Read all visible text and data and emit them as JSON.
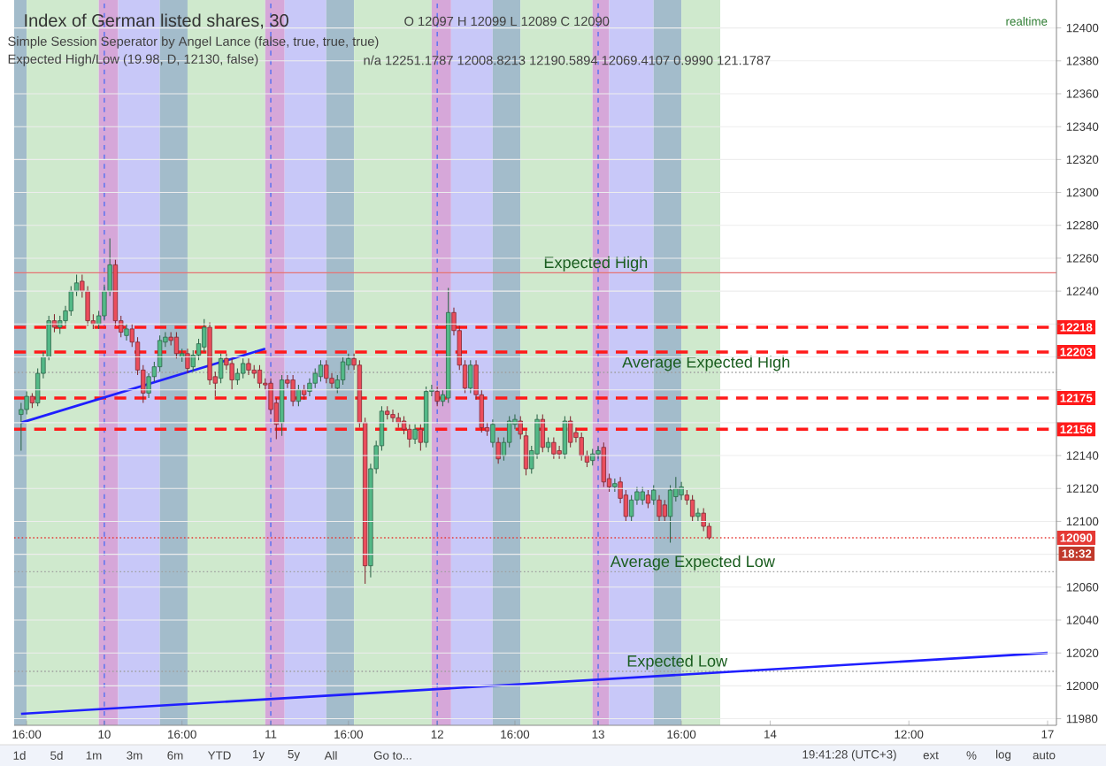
{
  "chart_data": {
    "type": "candlestick",
    "title": "Index of German listed shares, 30",
    "categories": [
      null,
      "16:00",
      null,
      null,
      null,
      null,
      null,
      null,
      null,
      null,
      null,
      null,
      null,
      null,
      null,
      "10",
      null,
      null,
      null,
      null,
      null,
      null,
      null,
      null,
      null,
      null,
      null,
      null,
      null,
      "16:00",
      null,
      null,
      null,
      null,
      null,
      null,
      null,
      null,
      null,
      null,
      null,
      null,
      null,
      null,
      null,
      "11",
      null,
      null,
      null,
      null,
      null,
      null,
      null,
      null,
      null,
      null,
      null,
      null,
      null,
      "16:00",
      null,
      null,
      null,
      null,
      null,
      null,
      null,
      null,
      null,
      null,
      null,
      null,
      null,
      null,
      null,
      "12",
      null,
      null,
      null,
      null,
      null,
      null,
      null,
      null,
      null,
      null,
      null,
      null,
      null,
      "16:00",
      null,
      null,
      null,
      null,
      null,
      null,
      null,
      null,
      null,
      null,
      null,
      null,
      null,
      null,
      "13",
      null,
      null,
      null,
      null,
      null,
      null,
      null,
      null,
      null,
      null,
      null,
      null,
      null,
      null,
      "16:00",
      null,
      null,
      null,
      null,
      null,
      null,
      null,
      null,
      null,
      null,
      null,
      null,
      null,
      null,
      null,
      "14",
      null,
      null,
      null,
      null,
      null,
      null,
      null,
      null,
      null,
      null,
      null,
      null,
      null,
      null,
      null,
      null,
      null,
      null,
      null,
      null,
      null,
      null,
      null,
      null,
      "12:00",
      null,
      null,
      null,
      null,
      null,
      null,
      null,
      null,
      null,
      null,
      null,
      null,
      null,
      null,
      null,
      null,
      null,
      null,
      null,
      null,
      null,
      null,
      null,
      null,
      "17"
    ],
    "ohlc": [
      [
        12165,
        12172,
        12143,
        12168
      ],
      [
        12168,
        12179,
        12165,
        12176
      ],
      [
        12176,
        12178,
        12169,
        12172
      ],
      [
        12172,
        12193,
        12170,
        12190
      ],
      [
        12190,
        12203,
        12187,
        12200
      ],
      [
        12200,
        12225,
        12198,
        12222
      ],
      [
        12222,
        12226,
        12215,
        12218
      ],
      [
        12218,
        12225,
        12214,
        12222
      ],
      [
        12222,
        12231,
        12219,
        12228
      ],
      [
        12228,
        12243,
        12225,
        12240
      ],
      [
        12240,
        12250,
        12237,
        12245
      ],
      [
        12246,
        12250,
        12236,
        12240
      ],
      [
        12240,
        12243,
        12219,
        12222
      ],
      [
        12222,
        12226,
        12217,
        12220
      ],
      [
        12220,
        12228,
        12217,
        12225
      ],
      [
        12225,
        12244,
        12222,
        12240
      ],
      [
        12240,
        12272,
        12237,
        12256
      ],
      [
        12256,
        12259,
        12219,
        12222
      ],
      [
        12222,
        12225,
        12212,
        12215
      ],
      [
        12213,
        12220,
        12210,
        12217
      ],
      [
        12217,
        12220,
        12206,
        12209
      ],
      [
        12209,
        12212,
        12189,
        12192
      ],
      [
        12192,
        12195,
        12172,
        12178
      ],
      [
        12178,
        12190,
        12175,
        12188
      ],
      [
        12188,
        12197,
        12185,
        12194
      ],
      [
        12194,
        12213,
        12191,
        12210
      ],
      [
        12209,
        12215,
        12206,
        12212
      ],
      [
        12212,
        12215,
        12207,
        12210
      ],
      [
        12212,
        12215,
        12199,
        12202
      ],
      [
        12200,
        12205,
        12197,
        12202
      ],
      [
        12202,
        12205,
        12190,
        12193
      ],
      [
        12194,
        12204,
        12191,
        12201
      ],
      [
        12201,
        12211,
        12198,
        12208
      ],
      [
        12206,
        12223,
        12203,
        12218
      ],
      [
        12218,
        12221,
        12183,
        12186
      ],
      [
        12188,
        12191,
        12176,
        12184
      ],
      [
        12187,
        12202,
        12184,
        12199
      ],
      [
        12199,
        12202,
        12192,
        12195
      ],
      [
        12196,
        12199,
        12180,
        12186
      ],
      [
        12186,
        12193,
        12183,
        12190
      ],
      [
        12190,
        12199,
        12187,
        12196
      ],
      [
        12196,
        12199,
        12189,
        12192
      ],
      [
        12192,
        12195,
        12187,
        12190
      ],
      [
        12192,
        12195,
        12181,
        12184
      ],
      [
        12184,
        12187,
        12180,
        12183
      ],
      [
        12184,
        12187,
        12165,
        12168
      ],
      [
        12172,
        12175,
        12150,
        12159
      ],
      [
        12160,
        12189,
        12152,
        12186
      ],
      [
        12186,
        12189,
        12181,
        12184
      ],
      [
        12186,
        12189,
        12170,
        12173
      ],
      [
        12173,
        12183,
        12170,
        12180
      ],
      [
        12180,
        12183,
        12174,
        12177
      ],
      [
        12179,
        12187,
        12176,
        12184
      ],
      [
        12184,
        12193,
        12181,
        12190
      ],
      [
        12188,
        12198,
        12185,
        12195
      ],
      [
        12195,
        12198,
        12184,
        12187
      ],
      [
        12187,
        12190,
        12181,
        12184
      ],
      [
        12181,
        12189,
        12178,
        12186
      ],
      [
        12186,
        12200,
        12183,
        12197
      ],
      [
        12195,
        12202,
        12192,
        12199
      ],
      [
        12199,
        12202,
        12192,
        12195
      ],
      [
        12195,
        12198,
        12157,
        12160
      ],
      [
        12160,
        12163,
        12062,
        12073
      ],
      [
        12073,
        12135,
        12066,
        12132
      ],
      [
        12132,
        12149,
        12129,
        12146
      ],
      [
        12146,
        12170,
        12143,
        12167
      ],
      [
        12167,
        12170,
        12162,
        12165
      ],
      [
        12165,
        12168,
        12160,
        12163
      ],
      [
        12163,
        12166,
        12157,
        12160
      ],
      [
        12161,
        12164,
        12153,
        12156
      ],
      [
        12156,
        12159,
        12145,
        12150
      ],
      [
        12150,
        12159,
        12147,
        12156
      ],
      [
        12156,
        12159,
        12143,
        12148
      ],
      [
        12148,
        12182,
        12145,
        12179
      ],
      [
        12179,
        12183,
        12176,
        12180
      ],
      [
        12179,
        12182,
        12170,
        12173
      ],
      [
        12173,
        12180,
        12170,
        12177
      ],
      [
        12175,
        12242,
        12172,
        12227
      ],
      [
        12227,
        12230,
        12213,
        12216
      ],
      [
        12216,
        12219,
        12192,
        12195
      ],
      [
        12195,
        12198,
        12178,
        12181
      ],
      [
        12181,
        12198,
        12178,
        12195
      ],
      [
        12195,
        12198,
        12174,
        12177
      ],
      [
        12177,
        12180,
        12154,
        12157
      ],
      [
        12157,
        12160,
        12152,
        12155
      ],
      [
        12148,
        12162,
        12145,
        12159
      ],
      [
        12148,
        12151,
        12135,
        12138
      ],
      [
        12140,
        12151,
        12137,
        12148
      ],
      [
        12148,
        12164,
        12145,
        12161
      ],
      [
        12159,
        12165,
        12156,
        12162
      ],
      [
        12161,
        12164,
        12150,
        12153
      ],
      [
        12152,
        12155,
        12128,
        12132
      ],
      [
        12132,
        12146,
        12129,
        12143
      ],
      [
        12141,
        12165,
        12138,
        12162
      ],
      [
        12162,
        12165,
        12142,
        12145
      ],
      [
        12145,
        12151,
        12142,
        12148
      ],
      [
        12148,
        12151,
        12138,
        12141
      ],
      [
        12143,
        12146,
        12138,
        12141
      ],
      [
        12141,
        12164,
        12138,
        12161
      ],
      [
        12161,
        12164,
        12145,
        12148
      ],
      [
        12154,
        12157,
        12148,
        12151
      ],
      [
        12151,
        12154,
        12137,
        12140
      ],
      [
        12140,
        12143,
        12133,
        12136
      ],
      [
        12137,
        12144,
        12134,
        12141
      ],
      [
        12141,
        12146,
        12138,
        12143
      ],
      [
        12145,
        12148,
        12121,
        12124
      ],
      [
        12126,
        12129,
        12118,
        12121
      ],
      [
        12121,
        12126,
        12118,
        12123
      ],
      [
        12124,
        12127,
        12111,
        12114
      ],
      [
        12116,
        12119,
        12100,
        12103
      ],
      [
        12103,
        12116,
        12100,
        12113
      ],
      [
        12113,
        12121,
        12110,
        12118
      ],
      [
        12113,
        12121,
        12110,
        12118
      ],
      [
        12116,
        12119,
        12108,
        12111
      ],
      [
        12113,
        12122,
        12110,
        12119
      ],
      [
        12113,
        12116,
        12100,
        12103
      ],
      [
        12110,
        12113,
        12100,
        12103
      ],
      [
        12103,
        12122,
        12087,
        12119
      ],
      [
        12115,
        12127,
        12112,
        12120
      ],
      [
        12116,
        12124,
        12113,
        12121
      ],
      [
        12116,
        12119,
        12110,
        12113
      ],
      [
        12113,
        12116,
        12100,
        12103
      ],
      [
        12103,
        12108,
        12100,
        12105
      ],
      [
        12105,
        12108,
        12094,
        12097
      ],
      [
        12097,
        12099,
        12089,
        12090
      ],
      null,
      null,
      null,
      null,
      null,
      null,
      null,
      null,
      null,
      null,
      null,
      null,
      null,
      null,
      null,
      null,
      null,
      null,
      null,
      null,
      null,
      null,
      null,
      null,
      null,
      null,
      null,
      null,
      null,
      null,
      null,
      null,
      null,
      null,
      null,
      null,
      null,
      null,
      null,
      null,
      null,
      null,
      null,
      null,
      null,
      null,
      null,
      null,
      null,
      null,
      null,
      null,
      null,
      null,
      null,
      null,
      null,
      null,
      null,
      null,
      null
    ],
    "colors": [
      "#53b987",
      "#53b987",
      "#eb4d5c",
      "#53b987",
      "#53b987",
      "#53b987",
      "#eb4d5c",
      "#53b987",
      "#53b987",
      "#53b987",
      "#53b987",
      "#eb4d5c",
      "#eb4d5c",
      "#eb4d5c",
      "#53b987",
      "#53b987",
      "#53b987",
      "#eb4d5c",
      "#eb4d5c",
      "#53b987",
      "#eb4d5c",
      "#eb4d5c",
      "#eb4d5c",
      "#53b987",
      "#53b987",
      "#53b987",
      "#53b987",
      "#eb4d5c",
      "#eb4d5c",
      "#53b987",
      "#eb4d5c",
      "#53b987",
      "#53b987",
      "#53b987",
      "#eb4d5c",
      "#eb4d5c",
      "#53b987",
      "#eb4d5c",
      "#eb4d5c",
      "#53b987",
      "#53b987",
      "#eb4d5c",
      "#eb4d5c",
      "#eb4d5c",
      "#eb4d5c",
      "#eb4d5c",
      "#eb4d5c",
      "#53b987",
      "#eb4d5c",
      "#eb4d5c",
      "#53b987",
      "#eb4d5c",
      "#53b987",
      "#53b987",
      "#53b987",
      "#eb4d5c",
      "#eb4d5c",
      "#53b987",
      "#53b987",
      "#53b987",
      "#eb4d5c",
      "#eb4d5c",
      "#eb4d5c",
      "#53b987",
      "#53b987",
      "#53b987",
      "#eb4d5c",
      "#eb4d5c",
      "#eb4d5c",
      "#eb4d5c",
      "#eb4d5c",
      "#53b987",
      "#eb4d5c",
      "#53b987",
      "#53b987",
      "#eb4d5c",
      "#53b987",
      "#53b987",
      "#eb4d5c",
      "#eb4d5c",
      "#eb4d5c",
      "#53b987",
      "#eb4d5c",
      "#eb4d5c",
      "#eb4d5c",
      "#53b987",
      "#eb4d5c",
      "#53b987",
      "#53b987",
      "#53b987",
      "#eb4d5c",
      "#eb4d5c",
      "#53b987",
      "#53b987",
      "#eb4d5c",
      "#53b987",
      "#eb4d5c",
      "#eb4d5c",
      "#53b987",
      "#eb4d5c",
      "#eb4d5c",
      "#eb4d5c",
      "#eb4d5c",
      "#53b987",
      "#53b987",
      "#eb4d5c",
      "#eb4d5c",
      "#53b987",
      "#eb4d5c",
      "#eb4d5c",
      "#53b987",
      "#53b987",
      "#53b987",
      "#eb4d5c",
      "#53b987",
      "#eb4d5c",
      "#eb4d5c",
      "#53b987",
      "#53b987",
      "#53b987",
      "#eb4d5c",
      "#eb4d5c",
      "#53b987",
      "#eb4d5c",
      "#eb4d5c",
      null,
      null,
      null,
      null,
      null,
      null,
      null,
      null,
      null,
      null,
      null,
      null,
      null,
      null,
      null,
      null,
      null,
      null,
      null,
      null,
      null,
      null,
      null,
      null,
      null,
      null,
      null,
      null,
      null,
      null,
      null,
      null,
      null,
      null,
      null,
      null,
      null,
      null,
      null,
      null,
      null,
      null,
      null,
      null,
      null,
      null,
      null,
      null,
      null,
      null,
      null,
      null,
      null,
      null,
      null,
      null,
      null,
      null,
      null,
      null,
      null
    ],
    "series": [
      {
        "type": "line",
        "color": "#1f1fff",
        "values": [
          12160,
          null,
          null,
          null,
          null,
          null,
          null,
          null,
          null,
          null,
          null,
          null,
          null,
          null,
          null,
          null,
          null,
          null,
          null,
          null,
          null,
          null,
          null,
          null,
          null,
          null,
          null,
          null,
          null,
          null,
          null,
          null,
          null,
          null,
          null,
          null,
          null,
          null,
          null,
          null,
          null,
          null,
          null,
          null,
          12205,
          null,
          null,
          null,
          null,
          null,
          null,
          null,
          null,
          null,
          null,
          null,
          null,
          null,
          null,
          null,
          null,
          null,
          null,
          null,
          null,
          null,
          null,
          null,
          null,
          null,
          null,
          null,
          null,
          null,
          null,
          null,
          null,
          null,
          null,
          null,
          null,
          null,
          null,
          null,
          null,
          null,
          null,
          null,
          null,
          null,
          null,
          null,
          null,
          null,
          null,
          null,
          null,
          null,
          null,
          null,
          null,
          null,
          null,
          null,
          null,
          null,
          null,
          null,
          null,
          null,
          null,
          null,
          null,
          null,
          null,
          null,
          null,
          null,
          null,
          null,
          null,
          null,
          null,
          null,
          null,
          null,
          null,
          null,
          null,
          null,
          null,
          null,
          null,
          null,
          null,
          null,
          null,
          null,
          null,
          null,
          null,
          null,
          null,
          null,
          null,
          null,
          null,
          null,
          null,
          null,
          null,
          null,
          null,
          null,
          null,
          null,
          null,
          null,
          null,
          null,
          null,
          null,
          null,
          null,
          null,
          null,
          null,
          null,
          null,
          null,
          null,
          null,
          null,
          null,
          null,
          null,
          null,
          null,
          null,
          null,
          null,
          null,
          null,
          null,
          null,
          null
        ]
      },
      {
        "type": "line",
        "color": "#1f1fff",
        "values": [
          11983,
          null,
          null,
          null,
          null,
          null,
          null,
          null,
          null,
          null,
          null,
          null,
          null,
          null,
          null,
          null,
          null,
          null,
          null,
          null,
          null,
          null,
          null,
          null,
          null,
          null,
          null,
          null,
          null,
          null,
          null,
          null,
          null,
          null,
          null,
          null,
          null,
          null,
          null,
          null,
          null,
          null,
          null,
          null,
          null,
          null,
          null,
          null,
          null,
          null,
          null,
          null,
          null,
          null,
          null,
          null,
          null,
          null,
          null,
          null,
          null,
          null,
          null,
          null,
          null,
          null,
          null,
          null,
          null,
          null,
          null,
          null,
          null,
          null,
          null,
          null,
          null,
          null,
          null,
          null,
          null,
          null,
          null,
          null,
          null,
          null,
          null,
          null,
          null,
          null,
          null,
          null,
          null,
          null,
          null,
          null,
          null,
          null,
          null,
          null,
          null,
          null,
          null,
          null,
          null,
          null,
          null,
          null,
          null,
          null,
          null,
          null,
          null,
          null,
          null,
          null,
          null,
          null,
          null,
          null,
          null,
          null,
          null,
          null,
          null,
          null,
          null,
          null,
          null,
          null,
          null,
          null,
          null,
          null,
          null,
          null,
          null,
          null,
          null,
          null,
          null,
          null,
          null,
          null,
          null,
          null,
          null,
          null,
          null,
          null,
          null,
          null,
          null,
          null,
          null,
          null,
          null,
          null,
          null,
          null,
          null,
          null,
          null,
          null,
          null,
          null,
          null,
          null,
          null,
          null,
          null,
          null,
          null,
          null,
          null,
          null,
          null,
          null,
          null,
          null,
          null,
          null,
          null,
          null,
          null,
          12020
        ]
      }
    ],
    "ylim": [
      11976,
      12417
    ],
    "yticks": [
      11980,
      12000,
      12020,
      12040,
      12060,
      {
        "value": 12080,
        "label": null
      },
      12100,
      12120,
      12140,
      {
        "value": 12160,
        "label": null
      },
      {
        "value": 12180,
        "label": null
      },
      {
        "value": 12200,
        "label": null
      },
      {
        "value": 12220,
        "label": null
      },
      12240,
      12260,
      12280,
      12300,
      12320,
      12340,
      12360,
      12380,
      12400
    ],
    "grid": "y",
    "ref_lines": [
      {
        "axis": "y",
        "value": 12218,
        "label": "12218",
        "color": "#ff1a1a",
        "line_style": "dashed"
      },
      {
        "axis": "y",
        "value": 12203,
        "label": "12203",
        "color": "#ff1a1a",
        "line_style": "dashed"
      },
      {
        "axis": "y",
        "value": 12175,
        "label": "12175",
        "color": "#ff1a1a",
        "line_style": "dashed"
      },
      {
        "axis": "y",
        "value": 12156,
        "label": "12156",
        "color": "#ff1a1a",
        "line_style": "dashed"
      },
      {
        "axis": "y",
        "value": 12090,
        "label": "12090",
        "color": "#e53935",
        "line_style": "dotted"
      },
      {
        "axis": "y",
        "value": 12251.1787,
        "color": "#e57373",
        "line_style": "solid"
      },
      {
        "axis": "y",
        "value": 12190.5894,
        "color": "#9e9e9e",
        "line_style": "dotted"
      },
      {
        "axis": "y",
        "value": 12069.4107,
        "color": "#9e9e9e",
        "line_style": "dotted"
      },
      {
        "axis": "y",
        "value": 12008.8213,
        "color": "#9e9e9e",
        "line_style": "dotted"
      }
    ],
    "annotations": [
      {
        "text": "Expected High",
        "y": 12251.1787
      },
      {
        "text": "Average Expected High",
        "y": 12190.5894
      },
      {
        "text": "Average Expected Low",
        "y": 12069.4107
      },
      {
        "text": "Expected Low",
        "y": 12008.8213
      },
      "O 12097 H 12099 L 12089 C 12090",
      "Simple Session Seperator by Angel Lance (false, true, true, true)",
      "Expected High/Low (19.98, D, 12130, false)",
      "n/a 12251.1787 12008.8213 12190.5894 12069.4107 0.9990 121.1787",
      "realtime",
      "18:32",
      "1d",
      "5d",
      "1m",
      "3m",
      "6m",
      "YTD",
      "1y",
      "5y",
      "All",
      "Go to...",
      "19:41:28 (UTC+3)",
      "ext",
      "%",
      "log",
      "auto"
    ]
  }
}
